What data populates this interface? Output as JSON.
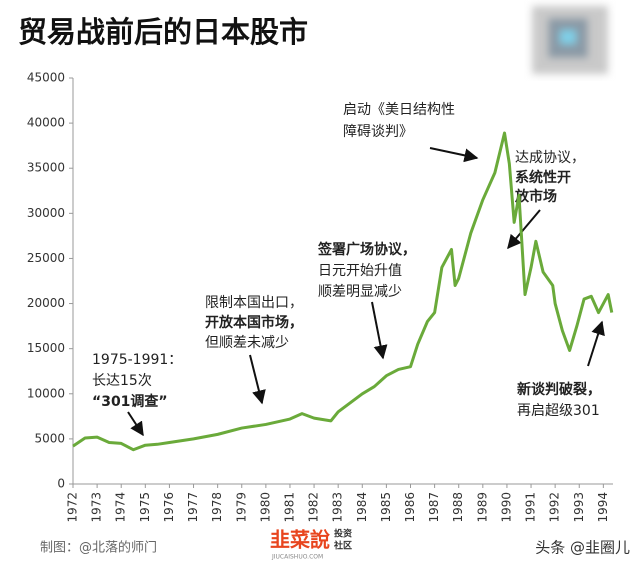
{
  "chart_data": {
    "type": "line",
    "title": "贸易战前后的日本股市",
    "x": [
      1972.0,
      1972.5,
      1973.0,
      1973.5,
      1974.0,
      1974.5,
      1975.0,
      1975.5,
      1976.0,
      1977.0,
      1978.0,
      1979.0,
      1980.0,
      1981.0,
      1981.5,
      1982.0,
      1982.7,
      1983.0,
      1984.0,
      1984.5,
      1985.0,
      1985.5,
      1986.0,
      1986.3,
      1986.7,
      1987.0,
      1987.3,
      1987.7,
      1987.85,
      1988.0,
      1988.5,
      1989.0,
      1989.5,
      1989.9,
      1990.1,
      1990.3,
      1990.5,
      1990.75,
      1991.0,
      1991.2,
      1991.5,
      1991.9,
      1992.0,
      1992.3,
      1992.6,
      1992.9,
      1993.2,
      1993.5,
      1993.8,
      1994.0,
      1994.2,
      1994.35
    ],
    "values": [
      4200,
      5100,
      5200,
      4600,
      4500,
      3800,
      4300,
      4400,
      4600,
      5000,
      5500,
      6200,
      6600,
      7200,
      7800,
      7300,
      7000,
      8000,
      10000,
      10800,
      12000,
      12700,
      13000,
      15500,
      18000,
      19000,
      24000,
      26000,
      22000,
      22800,
      27800,
      31500,
      34500,
      38900,
      35500,
      29000,
      32000,
      21000,
      24000,
      26900,
      23500,
      22000,
      20000,
      17000,
      14800,
      17500,
      20500,
      20800,
      19000,
      20000,
      21000,
      19000
    ],
    "color": "#6aaa3a",
    "xlim": [
      1972,
      1994.4
    ],
    "xticks": [
      1972,
      1973,
      1974,
      1975,
      1976,
      1977,
      1978,
      1979,
      1980,
      1981,
      1982,
      1983,
      1984,
      1985,
      1986,
      1987,
      1988,
      1989,
      1990,
      1991,
      1992,
      1993,
      1994
    ],
    "ylim": [
      0,
      45000
    ],
    "yticks": [
      0,
      5000,
      10000,
      15000,
      20000,
      25000,
      30000,
      35000,
      40000,
      45000
    ],
    "grid": false,
    "annotations": [
      {
        "lines": [
          "启动《美日结构性",
          "障碍谈判》"
        ]
      },
      {
        "lines": [
          "达成协议，",
          "系统性开",
          "放市场"
        ]
      },
      {
        "lines": [
          "签署广场协议，",
          "日元开始升值",
          "顺差明显减少"
        ]
      },
      {
        "lines": [
          "限制本国出口，",
          "开放本国市场，",
          "但顺差未减少"
        ]
      },
      {
        "lines": [
          "1975-1991：",
          "长达15次",
          "“301调查”"
        ]
      },
      {
        "lines": [
          "新谈判破裂，",
          "再启超级301"
        ]
      }
    ]
  },
  "footer": {
    "credit": "制图：@北落的师门",
    "logo": "韭菜說",
    "logo_tag_1": "投资",
    "logo_tag_2": "社区",
    "logo_url": "JIUCAISHUO.COM",
    "watermark": "头条 @韭圈儿"
  }
}
